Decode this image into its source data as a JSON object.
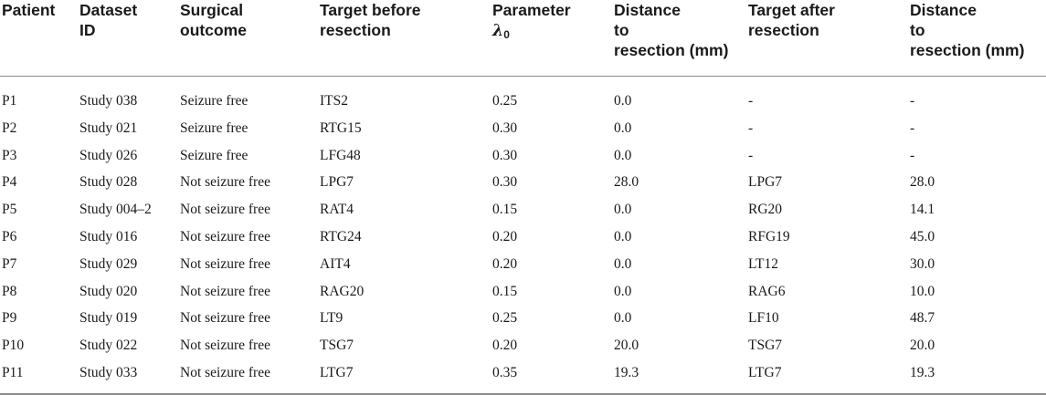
{
  "table": {
    "headers": [
      {
        "lines": [
          "Patient"
        ]
      },
      {
        "lines": [
          "Dataset",
          "ID"
        ]
      },
      {
        "lines": [
          "Surgical",
          "outcome"
        ]
      },
      {
        "lines": [
          "Target before",
          "resection"
        ]
      },
      {
        "lines": [
          "Parameter"
        ],
        "symbol": "λ",
        "subscript": "0"
      },
      {
        "lines": [
          "Distance",
          "to",
          "resection (mm)"
        ]
      },
      {
        "lines": [
          "Target after",
          "resection"
        ]
      },
      {
        "lines": [
          "Distance",
          "to",
          "resection (mm)"
        ]
      }
    ],
    "rows": [
      [
        "P1",
        "Study 038",
        "Seizure free",
        "ITS2",
        "0.25",
        "0.0",
        "-",
        "-"
      ],
      [
        "P2",
        "Study 021",
        "Seizure free",
        "RTG15",
        "0.30",
        "0.0",
        "-",
        "-"
      ],
      [
        "P3",
        "Study 026",
        "Seizure free",
        "LFG48",
        "0.30",
        "0.0",
        "-",
        "-"
      ],
      [
        "P4",
        "Study 028",
        "Not seizure free",
        "LPG7",
        "0.30",
        "28.0",
        "LPG7",
        "28.0"
      ],
      [
        "P5",
        "Study 004–2",
        "Not seizure free",
        "RAT4",
        "0.15",
        "0.0",
        "RG20",
        "14.1"
      ],
      [
        "P6",
        "Study 016",
        "Not seizure free",
        "RTG24",
        "0.20",
        "0.0",
        "RFG19",
        "45.0"
      ],
      [
        "P7",
        "Study 029",
        "Not seizure free",
        "AIT4",
        "0.20",
        "0.0",
        "LT12",
        "30.0"
      ],
      [
        "P8",
        "Study 020",
        "Not seizure free",
        "RAG20",
        "0.15",
        "0.0",
        "RAG6",
        "10.0"
      ],
      [
        "P9",
        "Study 019",
        "Not seizure free",
        "LT9",
        "0.25",
        "0.0",
        "LF10",
        "48.7"
      ],
      [
        "P10",
        "Study 022",
        "Not seizure free",
        "TSG7",
        "0.20",
        "20.0",
        "TSG7",
        "20.0"
      ],
      [
        "P11",
        "Study 033",
        "Not seizure free",
        "LTG7",
        "0.35",
        "19.3",
        "LTG7",
        "19.3"
      ]
    ]
  }
}
